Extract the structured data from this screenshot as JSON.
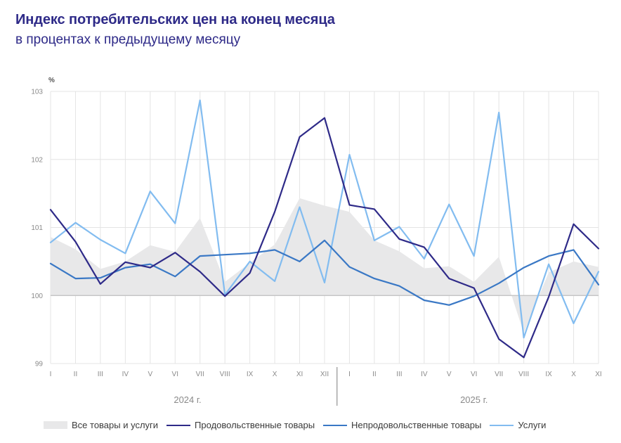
{
  "title": "Индекс потребительских цен на конец месяца",
  "subtitle": "в процентах к предыдущему месяцу",
  "chart_data": {
    "type": "line",
    "ylabel": "%",
    "ylim": [
      99,
      103
    ],
    "yticks": [
      "99",
      "100",
      "101",
      "102",
      "103"
    ],
    "categories": [
      "I",
      "II",
      "III",
      "IV",
      "V",
      "VI",
      "VII",
      "VIII",
      "IX",
      "X",
      "XI",
      "XII",
      "I",
      "II",
      "III",
      "IV",
      "V",
      "VI",
      "VII",
      "VIII",
      "IX",
      "X",
      "XI"
    ],
    "years": [
      "2024 г.",
      "2025 г."
    ],
    "series": [
      {
        "name": "Все товары и услуги",
        "kind": "area",
        "color": "#e8e8e9",
        "values": [
          100.86,
          100.68,
          100.39,
          100.5,
          100.74,
          100.64,
          101.14,
          100.2,
          100.48,
          100.75,
          101.43,
          101.32,
          101.23,
          100.81,
          100.65,
          100.4,
          100.43,
          100.2,
          100.57,
          99.45,
          100.34,
          100.5,
          100.42
        ]
      },
      {
        "name": "Продовольственные товары",
        "kind": "line",
        "color": "#2e2a88",
        "values": [
          101.26,
          100.79,
          100.17,
          100.49,
          100.41,
          100.63,
          100.35,
          99.99,
          100.33,
          101.23,
          102.33,
          102.61,
          101.33,
          101.27,
          100.83,
          100.71,
          100.25,
          100.11,
          99.36,
          99.09,
          99.98,
          101.05,
          100.69
        ]
      },
      {
        "name": "Непродовольственные товары",
        "kind": "line",
        "color": "#3a78c5",
        "values": [
          100.47,
          100.25,
          100.26,
          100.41,
          100.46,
          100.28,
          100.58,
          100.6,
          100.62,
          100.67,
          100.5,
          100.81,
          100.42,
          100.25,
          100.14,
          99.93,
          99.86,
          99.99,
          100.18,
          100.41,
          100.58,
          100.67,
          100.16
        ]
      },
      {
        "name": "Услуги",
        "kind": "line",
        "color": "#82bcf0",
        "values": [
          100.78,
          101.07,
          100.82,
          100.62,
          101.53,
          101.06,
          102.87,
          100.01,
          100.5,
          100.21,
          101.3,
          100.19,
          102.07,
          100.81,
          101.01,
          100.54,
          101.34,
          100.58,
          102.69,
          99.38,
          100.46,
          99.59,
          100.35
        ]
      }
    ]
  },
  "legend": {
    "all": "Все товары и услуги",
    "food": "Продовольственные товары",
    "nonfood": "Непродовольственные товары",
    "services": "Услуги"
  }
}
